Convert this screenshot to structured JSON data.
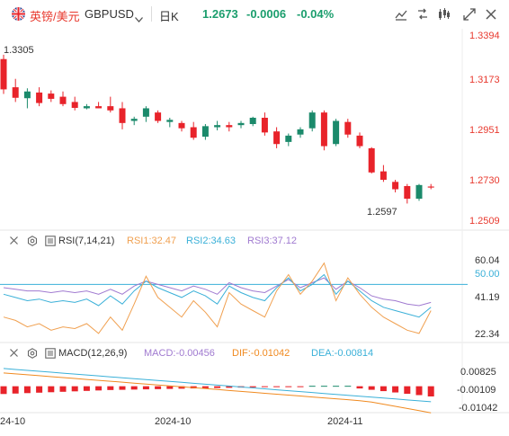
{
  "header": {
    "symbol_name": "英镑/美元",
    "symbol_code": "GBPUSD",
    "period": "日K",
    "price": "1.2673",
    "change": "-0.0006",
    "change_pct": "-0.04%",
    "icons": [
      "line-tool-icon",
      "compare-icon",
      "indicator-icon",
      "fullscreen-icon",
      "close-icon"
    ]
  },
  "price_chart": {
    "axis_labels": [
      "1.3394",
      "1.3173",
      "1.2951",
      "1.2730",
      "1.2509"
    ],
    "high_label": "1.3305",
    "low_label": "1.2597",
    "up_color": "#1b8a6b",
    "down_color": "#e8232a"
  },
  "rsi": {
    "title": "RSI(7,14,21)",
    "rsi1": "RSI1:32.47",
    "rsi2": "RSI2:34.63",
    "rsi3": "RSI3:37.12",
    "axis_labels": [
      "60.04",
      "50.00",
      "41.19",
      "22.34"
    ],
    "colors": {
      "rsi1": "#f0a050",
      "rsi2": "#3ab0d8",
      "rsi3": "#a07ad0"
    }
  },
  "macd": {
    "title": "MACD(12,26,9)",
    "macd": "MACD:-0.00456",
    "dif": "DIF:-0.01042",
    "dea": "DEA:-0.00814",
    "axis_labels": [
      "0.00825",
      "-0.00109",
      "-0.01042"
    ],
    "colors": {
      "macd": "#a07ad0",
      "dif": "#f08a20",
      "dea": "#3ab0d8"
    }
  },
  "dates": [
    "24-10",
    "2024-10",
    "2024-11"
  ],
  "chart_data": {
    "type": "candlestick",
    "candles": [
      [
        1.3284,
        1.3305,
        1.3118,
        1.314
      ],
      [
        1.315,
        1.319,
        1.308,
        1.31
      ],
      [
        1.3098,
        1.3145,
        1.305,
        1.313
      ],
      [
        1.3125,
        1.315,
        1.306,
        1.3075
      ],
      [
        1.312,
        1.3135,
        1.308,
        1.3095
      ],
      [
        1.3105,
        1.313,
        1.306,
        1.307
      ],
      [
        1.308,
        1.3105,
        1.304,
        1.3052
      ],
      [
        1.305,
        1.307,
        1.3045,
        1.306
      ],
      [
        1.306,
        1.308,
        1.305,
        1.305
      ],
      [
        1.306,
        1.3105,
        1.303,
        1.304
      ],
      [
        1.305,
        1.308,
        1.295,
        1.298
      ],
      [
        1.299,
        1.301,
        1.297,
        1.3
      ],
      [
        1.301,
        1.306,
        1.2985,
        1.305
      ],
      [
        1.303,
        1.304,
        1.298,
        1.299
      ],
      [
        1.2985,
        1.3005,
        1.296,
        1.2995
      ],
      [
        1.298,
        1.299,
        1.294,
        1.2955
      ],
      [
        1.296,
        1.2985,
        1.29,
        1.291
      ],
      [
        1.2915,
        1.2975,
        1.29,
        1.2965
      ],
      [
        1.296,
        1.299,
        1.2945,
        1.297
      ],
      [
        1.297,
        1.2985,
        1.294,
        1.296
      ],
      [
        1.297,
        1.299,
        1.2955,
        1.298
      ],
      [
        1.2975,
        1.301,
        1.2965,
        1.3005
      ],
      [
        1.3005,
        1.303,
        1.292,
        1.2935
      ],
      [
        1.294,
        1.296,
        1.286,
        1.288
      ],
      [
        1.289,
        1.293,
        1.287,
        1.292
      ],
      [
        1.2925,
        1.296,
        1.291,
        1.295
      ],
      [
        1.2955,
        1.304,
        1.294,
        1.303
      ],
      [
        1.303,
        1.304,
        1.285,
        1.287
      ],
      [
        1.288,
        1.3,
        1.287,
        1.299
      ],
      [
        1.2985,
        1.3,
        1.291,
        1.2925
      ],
      [
        1.292,
        1.2935,
        1.286,
        1.287
      ],
      [
        1.286,
        1.2865,
        1.274,
        1.2745
      ],
      [
        1.275,
        1.278,
        1.27,
        1.271
      ],
      [
        1.27,
        1.271,
        1.265,
        1.2665
      ],
      [
        1.268,
        1.269,
        1.2597,
        1.262
      ],
      [
        1.262,
        1.269,
        1.261,
        1.2685
      ],
      [
        1.2678,
        1.269,
        1.2665,
        1.2673
      ]
    ],
    "rsi_levels": [
      50.0
    ]
  }
}
